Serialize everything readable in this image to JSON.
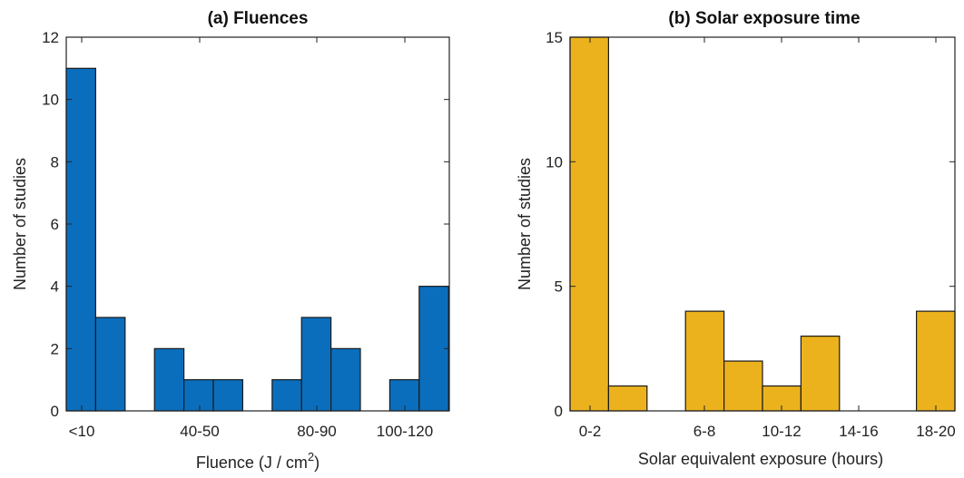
{
  "chart_data": [
    {
      "type": "bar",
      "title": "(a) Fluences",
      "xlabel_main": "Fluence (J / cm",
      "xlabel_sup": "2",
      "xlabel_end": ")",
      "ylabel": "Number of studies",
      "ylim": [
        0,
        12
      ],
      "yticks": [
        "0",
        "2",
        "4",
        "6",
        "8",
        "10",
        "12"
      ],
      "xtick_labels": [
        "<10",
        "40-50",
        "80-90",
        "100-120"
      ],
      "values": [
        11,
        3,
        0,
        2,
        1,
        1,
        0,
        1,
        3,
        2,
        0,
        1,
        4
      ],
      "color": "#0a6ebd"
    },
    {
      "type": "bar",
      "title": "(b) Solar exposure time",
      "xlabel": "Solar equivalent exposure (hours)",
      "ylabel": "Number of studies",
      "ylim": [
        0,
        15
      ],
      "yticks": [
        "0",
        "5",
        "10",
        "15"
      ],
      "xtick_labels": [
        "0-2",
        "6-8",
        "10-12",
        "14-16",
        "18-20"
      ],
      "values": [
        15,
        1,
        0,
        4,
        2,
        1,
        3,
        0,
        0,
        4
      ],
      "color": "#ebb21e"
    }
  ]
}
